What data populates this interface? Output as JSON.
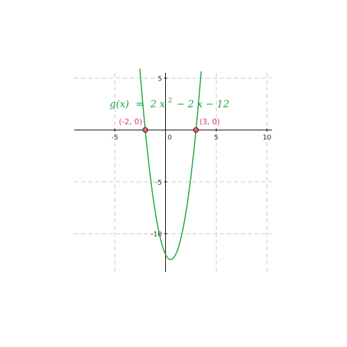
{
  "chart_data": {
    "type": "line",
    "title": "",
    "xlabel": "",
    "ylabel": "",
    "xlim": [
      -9,
      10.5
    ],
    "ylim": [
      -13.7,
      5.5
    ],
    "grid": true,
    "x_ticks": [
      -5,
      0,
      5,
      10
    ],
    "y_ticks": [
      5,
      -5,
      -10
    ],
    "x_tick_labels": [
      "-5",
      "0",
      "5",
      "10"
    ],
    "y_tick_labels": [
      "5",
      "-5",
      "-10"
    ],
    "function": {
      "name": "g",
      "coefficients": [
        2,
        -2,
        -12
      ],
      "formula": {
        "lhs": "g(x)",
        "equals": "=",
        "term1": "2 x",
        "exponent": "2",
        "term2": "− 2 x − 12"
      },
      "color": "#1aa33a",
      "vertex": [
        0.5,
        -12.5
      ]
    },
    "points": [
      {
        "x": -2,
        "y": 0,
        "label": "(-2, 0)"
      },
      {
        "x": 3,
        "y": 0,
        "label": "(3, 0)"
      }
    ],
    "colors": {
      "curve": "#1aa33a",
      "point_fill": "#ff5a6e",
      "point_label": "#e0307a",
      "grid": "#c8c8c8",
      "axis": "#000000"
    }
  }
}
